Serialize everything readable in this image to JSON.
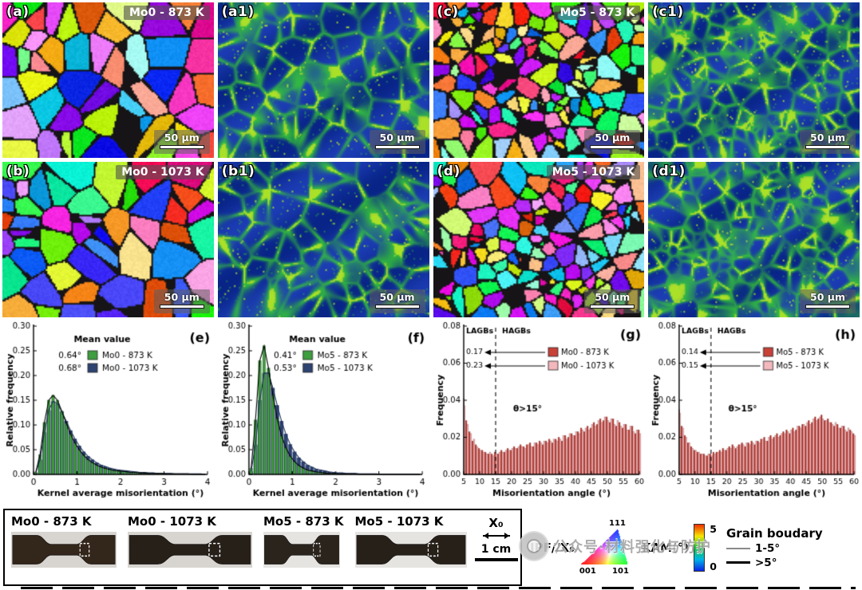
{
  "panels": [
    {
      "label": "(a)",
      "title": "Mo0 - 873 K",
      "scale": "50 μm",
      "kind": "ipf",
      "grain_size": "coarse"
    },
    {
      "label": "(a1)",
      "title": "",
      "scale": "50 μm",
      "kind": "kam",
      "grain_size": "coarse"
    },
    {
      "label": "(c)",
      "title": "Mo5 - 873 K",
      "scale": "50 μm",
      "kind": "ipf",
      "grain_size": "fine"
    },
    {
      "label": "(c1)",
      "title": "",
      "scale": "50 μm",
      "kind": "kam",
      "grain_size": "fine"
    },
    {
      "label": "(b)",
      "title": "Mo0 - 1073 K",
      "scale": "50 μm",
      "kind": "ipf",
      "grain_size": "coarse"
    },
    {
      "label": "(b1)",
      "title": "",
      "scale": "50 μm",
      "kind": "kam",
      "grain_size": "coarse"
    },
    {
      "label": "(d)",
      "title": "Mo5 - 1073 K",
      "scale": "50 μm",
      "kind": "ipf",
      "grain_size": "fine"
    },
    {
      "label": "(d1)",
      "title": "",
      "scale": "50 μm",
      "kind": "kam",
      "grain_size": "fine"
    }
  ],
  "chart_data": [
    {
      "id": "e",
      "panel_label": "(e)",
      "type": "bar",
      "xlabel": "Kernel average misorientation (°)",
      "ylabel": "Relative frequency",
      "xlim": [
        0,
        4
      ],
      "ylim": [
        0,
        0.3
      ],
      "xticks": [
        0,
        1,
        2,
        3,
        4
      ],
      "yticks": [
        0,
        0.05,
        0.1,
        0.15,
        0.2,
        0.25,
        0.3
      ],
      "legend_title": "Mean value",
      "bin_start": 0.05,
      "bin_step": 0.1,
      "series": [
        {
          "name": "Mo0 - 873 K",
          "mean": "0.64°",
          "color": "#3f9e3f",
          "values": [
            0.004,
            0.04,
            0.105,
            0.15,
            0.16,
            0.15,
            0.128,
            0.104,
            0.082,
            0.064,
            0.05,
            0.039,
            0.03,
            0.024,
            0.019,
            0.015,
            0.012,
            0.01,
            0.008,
            0.007,
            0.006,
            0.005,
            0.004,
            0.004,
            0.003,
            0.003,
            0.002,
            0.002,
            0.002,
            0.002,
            0.001,
            0.001,
            0.001,
            0.001,
            0.001,
            0.001,
            0.0,
            0.0,
            0.0,
            0.0
          ]
        },
        {
          "name": "Mo0 - 1073 K",
          "mean": "0.68°",
          "color": "#2e4372",
          "values": [
            0.003,
            0.03,
            0.085,
            0.13,
            0.148,
            0.143,
            0.127,
            0.108,
            0.089,
            0.072,
            0.058,
            0.046,
            0.037,
            0.03,
            0.024,
            0.019,
            0.016,
            0.013,
            0.011,
            0.009,
            0.008,
            0.007,
            0.006,
            0.005,
            0.004,
            0.004,
            0.003,
            0.003,
            0.002,
            0.002,
            0.002,
            0.002,
            0.001,
            0.001,
            0.001,
            0.001,
            0.001,
            0.001,
            0.001,
            0.0
          ]
        }
      ]
    },
    {
      "id": "f",
      "panel_label": "(f)",
      "type": "bar",
      "xlabel": "Kernel average misorientation (°)",
      "ylabel": "Relative frequency",
      "xlim": [
        0,
        4
      ],
      "ylim": [
        0,
        0.3
      ],
      "xticks": [
        0,
        1,
        2,
        3,
        4
      ],
      "yticks": [
        0,
        0.05,
        0.1,
        0.15,
        0.2,
        0.25,
        0.3
      ],
      "legend_title": "Mean value",
      "bin_start": 0.05,
      "bin_step": 0.1,
      "series": [
        {
          "name": "Mo5 - 873 K",
          "mean": "0.41°",
          "color": "#3f9e3f",
          "values": [
            0.012,
            0.11,
            0.23,
            0.26,
            0.215,
            0.16,
            0.113,
            0.078,
            0.054,
            0.037,
            0.026,
            0.018,
            0.013,
            0.009,
            0.007,
            0.005,
            0.004,
            0.003,
            0.002,
            0.002,
            0.001,
            0.001,
            0.001,
            0.001,
            0.001,
            0.0,
            0.0,
            0.0,
            0.0,
            0.0,
            0.0,
            0.0,
            0.0,
            0.0,
            0.0,
            0.0,
            0.0,
            0.0,
            0.0,
            0.0
          ]
        },
        {
          "name": "Mo5 - 1073 K",
          "mean": "0.53°",
          "color": "#2e4372",
          "values": [
            0.006,
            0.06,
            0.15,
            0.205,
            0.205,
            0.175,
            0.14,
            0.108,
            0.082,
            0.061,
            0.046,
            0.034,
            0.026,
            0.019,
            0.015,
            0.011,
            0.009,
            0.007,
            0.005,
            0.004,
            0.003,
            0.003,
            0.002,
            0.002,
            0.002,
            0.001,
            0.001,
            0.001,
            0.001,
            0.001,
            0.0,
            0.0,
            0.0,
            0.0,
            0.0,
            0.0,
            0.0,
            0.0,
            0.0,
            0.0
          ]
        }
      ]
    },
    {
      "id": "g",
      "panel_label": "(g)",
      "type": "bar",
      "xlabel": "Misorientation angle (°)",
      "ylabel": "Frequency",
      "xlim": [
        5,
        60
      ],
      "ylim": [
        0,
        0.08
      ],
      "xticks": [
        5,
        10,
        15,
        20,
        25,
        30,
        35,
        40,
        45,
        50,
        55,
        60
      ],
      "yticks": [
        0,
        0.02,
        0.04,
        0.06,
        0.08
      ],
      "boundary_x": 15,
      "region_labels": [
        "LAGBs",
        "HAGBs"
      ],
      "theta_label": "θ>15°",
      "x_start": 5,
      "x_step": 1,
      "series": [
        {
          "name": "Mo0 - 873 K",
          "fraction": "0.17",
          "color": "#c84238",
          "values": [
            0.041,
            0.029,
            0.023,
            0.018,
            0.016,
            0.014,
            0.013,
            0.012,
            0.011,
            0.011,
            0.012,
            0.011,
            0.013,
            0.012,
            0.014,
            0.013,
            0.015,
            0.014,
            0.016,
            0.015,
            0.016,
            0.017,
            0.015,
            0.017,
            0.018,
            0.016,
            0.018,
            0.019,
            0.017,
            0.019,
            0.02,
            0.018,
            0.021,
            0.02,
            0.022,
            0.021,
            0.023,
            0.025,
            0.023,
            0.026,
            0.025,
            0.028,
            0.027,
            0.03,
            0.029,
            0.031,
            0.028,
            0.03,
            0.026,
            0.028,
            0.025,
            0.027,
            0.024,
            0.026,
            0.022,
            0.024
          ]
        },
        {
          "name": "Mo0 - 1073 K",
          "fraction": "0.23",
          "color": "#f3b8bd",
          "values": [
            0.037,
            0.027,
            0.022,
            0.019,
            0.015,
            0.013,
            0.012,
            0.011,
            0.012,
            0.01,
            0.011,
            0.012,
            0.012,
            0.013,
            0.013,
            0.014,
            0.014,
            0.015,
            0.015,
            0.014,
            0.016,
            0.015,
            0.017,
            0.016,
            0.017,
            0.018,
            0.017,
            0.018,
            0.019,
            0.018,
            0.019,
            0.021,
            0.019,
            0.022,
            0.021,
            0.023,
            0.022,
            0.024,
            0.025,
            0.024,
            0.027,
            0.026,
            0.029,
            0.028,
            0.031,
            0.029,
            0.03,
            0.027,
            0.029,
            0.026,
            0.027,
            0.024,
            0.026,
            0.023,
            0.024,
            0.022
          ]
        }
      ]
    },
    {
      "id": "h",
      "panel_label": "(h)",
      "type": "bar",
      "xlabel": "Misorientation angle (°)",
      "ylabel": "Frequency",
      "xlim": [
        5,
        60
      ],
      "ylim": [
        0,
        0.08
      ],
      "xticks": [
        5,
        10,
        15,
        20,
        25,
        30,
        35,
        40,
        45,
        50,
        55,
        60
      ],
      "yticks": [
        0,
        0.02,
        0.04,
        0.06,
        0.08
      ],
      "boundary_x": 15,
      "region_labels": [
        "LAGBs",
        "HAGBs"
      ],
      "theta_label": "θ>15°",
      "x_start": 5,
      "x_step": 1,
      "series": [
        {
          "name": "Mo5 - 873 K",
          "fraction": "0.14",
          "color": "#c84238",
          "values": [
            0.035,
            0.026,
            0.021,
            0.017,
            0.015,
            0.013,
            0.012,
            0.011,
            0.011,
            0.01,
            0.011,
            0.012,
            0.012,
            0.013,
            0.014,
            0.013,
            0.015,
            0.016,
            0.014,
            0.016,
            0.017,
            0.015,
            0.017,
            0.018,
            0.016,
            0.018,
            0.019,
            0.02,
            0.018,
            0.021,
            0.02,
            0.022,
            0.021,
            0.023,
            0.024,
            0.022,
            0.025,
            0.024,
            0.026,
            0.027,
            0.026,
            0.029,
            0.028,
            0.031,
            0.03,
            0.032,
            0.029,
            0.03,
            0.028,
            0.026,
            0.027,
            0.025,
            0.026,
            0.023,
            0.024,
            0.022
          ]
        },
        {
          "name": "Mo5 - 1073 K",
          "fraction": "0.15",
          "color": "#f3b8bd",
          "values": [
            0.033,
            0.025,
            0.02,
            0.017,
            0.014,
            0.013,
            0.012,
            0.011,
            0.01,
            0.011,
            0.01,
            0.011,
            0.012,
            0.012,
            0.013,
            0.014,
            0.014,
            0.015,
            0.015,
            0.016,
            0.016,
            0.017,
            0.016,
            0.017,
            0.018,
            0.017,
            0.019,
            0.018,
            0.02,
            0.019,
            0.021,
            0.02,
            0.022,
            0.022,
            0.023,
            0.024,
            0.023,
            0.026,
            0.025,
            0.027,
            0.028,
            0.027,
            0.03,
            0.029,
            0.031,
            0.03,
            0.029,
            0.028,
            0.027,
            0.028,
            0.025,
            0.026,
            0.024,
            0.025,
            0.023,
            0.021
          ]
        }
      ]
    }
  ],
  "samples": {
    "labels": [
      "Mo0 - 873 K",
      "Mo0 - 1073 K",
      "Mo5 - 873 K",
      "Mo5 - 1073 K"
    ],
    "axis_label": "X₀",
    "scale_label": "1 cm"
  },
  "legend": {
    "ipf_title": "IPF//X₀",
    "ipf_pole_top": "111",
    "ipf_pole_left": "001",
    "ipf_pole_right": "101",
    "kam_title": "KAM(°)",
    "kam_max": "5",
    "kam_min": "0",
    "gb_title": "Grain boudary",
    "gb_items": [
      {
        "label": "1-5°"
      },
      {
        "label": ">5°"
      }
    ]
  },
  "watermark": {
    "text": "公众号·材料强化与防护"
  }
}
